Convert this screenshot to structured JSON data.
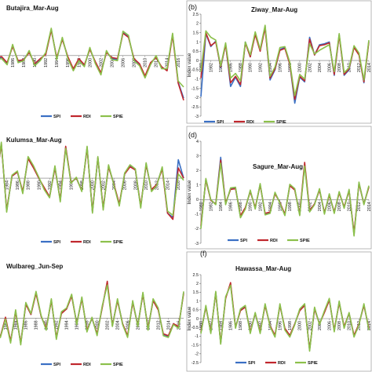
{
  "colors": {
    "SPI": "#3a6fc4",
    "RDI": "#c0272d",
    "SPIE": "#8cc04b"
  },
  "chart_data": [
    {
      "type": "line",
      "panel_label": "",
      "title": "Butajira_Mar-Aug",
      "ylabel": "",
      "yticks": [],
      "ylim": [
        -2.6,
        2.2
      ],
      "x_start": 1982,
      "x_end": 2017,
      "x_tick_labels": [
        "1982",
        "1984",
        "1986",
        "1988",
        "1990",
        "1992",
        "1994",
        "1996",
        "1998",
        "2000",
        "2002",
        "2004",
        "2006",
        "2008",
        "2010",
        "2012",
        "2014",
        "2016"
      ],
      "series": [
        {
          "name": "SPI",
          "values": [
            0.9,
            -0.15,
            -0.1,
            -0.4,
            0.5,
            -0.3,
            -0.2,
            0.2,
            -0.45,
            -0.2,
            0.1,
            1.3,
            -0.15,
            0.85,
            -0.1,
            -0.7,
            -0.2,
            -0.5,
            0.35,
            -0.35,
            -0.9,
            0.2,
            -0.15,
            -0.2,
            1.15,
            0.95,
            -0.2,
            -0.45,
            -1.05,
            -0.4,
            -0.05,
            -0.6,
            -0.7,
            1.05,
            -1.3,
            -2.1
          ]
        },
        {
          "name": "RDI",
          "values": [
            0.8,
            -0.1,
            -0.05,
            -0.35,
            0.45,
            -0.25,
            -0.2,
            0.15,
            -0.4,
            -0.15,
            0.05,
            1.25,
            -0.1,
            0.8,
            -0.05,
            -0.65,
            -0.15,
            -0.45,
            0.3,
            -0.3,
            -0.85,
            0.15,
            -0.1,
            -0.15,
            1.1,
            0.9,
            -0.15,
            -0.4,
            -1.0,
            -0.35,
            -0.1,
            -0.55,
            -0.75,
            1.0,
            -1.35,
            -2.2
          ]
        },
        {
          "name": "SPIE",
          "values": [
            0.85,
            -0.2,
            -0.15,
            -0.45,
            0.55,
            -0.35,
            -0.25,
            0.25,
            -0.5,
            -0.25,
            0.15,
            1.35,
            -0.2,
            0.9,
            -0.15,
            -0.75,
            -0.25,
            -0.55,
            0.4,
            -0.4,
            -0.95,
            0.25,
            -0.2,
            -0.25,
            1.2,
            1.0,
            -0.25,
            -0.5,
            -1.1,
            -0.45,
            0.0,
            -0.65,
            -0.65,
            1.1,
            -1.25,
            -1.55
          ]
        }
      ]
    },
    {
      "type": "line",
      "panel_label": "(b)",
      "title": "Ziway_Mar-Aug",
      "ylabel": "Index value",
      "yticks": [
        -3,
        -2.5,
        -2,
        -1.5,
        -1,
        -0.5,
        0,
        0.5,
        1,
        1.5,
        2,
        2.5
      ],
      "ylim": [
        -3,
        2.5
      ],
      "x_start": 1980,
      "x_end": 2014,
      "x_tick_labels": [
        "1980",
        "1982",
        "1984",
        "1986",
        "1988",
        "1990",
        "1992",
        "1994",
        "1996",
        "1998",
        "2000",
        "2002",
        "2004",
        "2006",
        "2008",
        "2010",
        "2012",
        "2014"
      ],
      "series": [
        {
          "name": "SPI",
          "values": [
            -1.95,
            1.45,
            0.75,
            1.05,
            -0.4,
            0.9,
            -1.4,
            -0.9,
            -1.4,
            1.0,
            0.2,
            1.45,
            0.55,
            1.85,
            -1.05,
            -0.5,
            0.6,
            0.7,
            -0.2,
            -2.3,
            -0.9,
            -1.15,
            1.25,
            0.3,
            0.85,
            0.9,
            1.0,
            -0.8,
            1.4,
            -0.8,
            -0.5,
            0.75,
            0.35,
            -1.2,
            1.05
          ]
        },
        {
          "name": "RDI",
          "values": [
            -0.95,
            1.5,
            0.8,
            1.0,
            -0.35,
            0.85,
            -1.2,
            -0.85,
            -1.3,
            0.95,
            0.2,
            1.4,
            0.5,
            1.75,
            -0.95,
            -0.45,
            0.55,
            0.65,
            -0.2,
            -2.1,
            -0.85,
            -1.1,
            1.15,
            0.3,
            0.8,
            0.85,
            0.95,
            -0.75,
            1.35,
            -0.75,
            -0.45,
            0.7,
            0.3,
            -1.15,
            1.0
          ]
        },
        {
          "name": "SPIE",
          "values": [
            -0.6,
            1.6,
            1.25,
            1.1,
            -0.3,
            0.95,
            -0.95,
            -0.7,
            -1.1,
            1.0,
            0.3,
            1.55,
            0.6,
            1.9,
            -0.85,
            -0.35,
            0.7,
            0.75,
            -0.1,
            -1.9,
            -0.75,
            -1.0,
            0.9,
            0.35,
            0.55,
            0.7,
            0.85,
            -0.6,
            1.45,
            -0.65,
            -0.4,
            0.8,
            0.4,
            -1.05,
            1.1
          ]
        }
      ]
    },
    {
      "type": "line",
      "panel_label": "",
      "title": "Kulumsa_Mar-Aug",
      "ylabel": "",
      "yticks": [],
      "ylim": [
        -2.4,
        2.1
      ],
      "x_start": 1981,
      "x_end": 2017,
      "x_tick_labels": [
        "1982",
        "1984",
        "1986",
        "1988",
        "1990",
        "1992",
        "1994",
        "1996",
        "1998",
        "2000",
        "2002",
        "2004",
        "2006",
        "2008",
        "2010",
        "2012",
        "2014",
        "2016"
      ],
      "series": [
        {
          "name": "SPI",
          "values": [
            1.05,
            -0.2,
            1.7,
            -1.6,
            0.1,
            0.3,
            -0.7,
            1.0,
            0.55,
            0.0,
            -0.5,
            -0.9,
            0.55,
            -1.1,
            1.5,
            -0.2,
            0.0,
            -0.6,
            1.5,
            -1.65,
            1.0,
            -1.5,
            0.6,
            -0.3,
            -1.3,
            0.2,
            0.6,
            0.4,
            -1.4,
            0.7,
            -0.6,
            -0.3,
            0.5,
            -1.7,
            -1.9,
            0.9,
            0.0
          ]
        },
        {
          "name": "RDI",
          "values": [
            1.0,
            -0.2,
            1.65,
            -1.55,
            0.1,
            0.3,
            -0.65,
            0.95,
            0.5,
            0.0,
            -0.45,
            -0.9,
            0.5,
            -1.05,
            1.55,
            -0.2,
            0.0,
            -0.6,
            1.45,
            -1.6,
            1.0,
            -1.45,
            0.55,
            -0.3,
            -1.25,
            0.2,
            0.55,
            0.4,
            -1.35,
            0.65,
            -0.55,
            -0.3,
            0.45,
            -1.7,
            -2.0,
            0.5,
            0.0
          ]
        },
        {
          "name": "SPIE",
          "values": [
            1.1,
            -0.25,
            1.75,
            -1.65,
            0.15,
            0.35,
            -0.75,
            1.05,
            0.6,
            0.05,
            -0.55,
            -0.95,
            0.6,
            -1.15,
            1.45,
            -0.25,
            0.05,
            -0.65,
            1.55,
            -1.7,
            1.05,
            -1.55,
            0.65,
            -0.35,
            -1.35,
            0.25,
            0.65,
            0.45,
            -1.45,
            0.75,
            -0.65,
            -0.35,
            0.55,
            -1.6,
            -1.8,
            0.2,
            -0.1
          ]
        }
      ]
    },
    {
      "type": "line",
      "panel_label": "(d)",
      "title": "Sagure_Mar-Aug",
      "ylabel": "Index value",
      "yticks": [
        -3,
        -2,
        -1,
        0,
        1,
        2,
        3,
        4
      ],
      "ylim": [
        -3,
        4
      ],
      "x_start": 1980,
      "x_end": 2014,
      "x_tick_labels": [
        "1980",
        "1982",
        "1984",
        "1986",
        "1988",
        "1990",
        "1992",
        "1994",
        "1996",
        "1998",
        "2000",
        "2002",
        "2004",
        "2006",
        "2008",
        "2010",
        "2012",
        "2014"
      ],
      "series": [
        {
          "name": "SPI",
          "values": [
            -1.9,
            1.4,
            -0.05,
            -0.3,
            2.9,
            -0.3,
            0.75,
            0.8,
            -1.2,
            -0.6,
            0.6,
            -0.6,
            1.05,
            -1.0,
            -0.9,
            0.45,
            -0.2,
            -1.05,
            1.0,
            0.7,
            -1.05,
            2.4,
            -0.8,
            -0.3,
            0.7,
            -0.95,
            0.35,
            -0.9,
            0.5,
            -0.55,
            0.65,
            -2.4,
            1.15,
            -0.3,
            0.9
          ]
        },
        {
          "name": "RDI",
          "values": [
            -1.8,
            1.35,
            -0.05,
            -0.3,
            2.7,
            -0.25,
            0.7,
            0.75,
            -1.1,
            -0.55,
            0.55,
            -0.55,
            1.0,
            -0.95,
            -0.85,
            0.4,
            -0.2,
            -1.0,
            0.95,
            0.65,
            -1.0,
            2.55,
            -0.75,
            -0.3,
            0.65,
            -0.9,
            0.3,
            -0.85,
            0.45,
            -0.5,
            0.6,
            -2.3,
            1.1,
            -0.3,
            0.85
          ]
        },
        {
          "name": "SPIE",
          "values": [
            -2.0,
            1.45,
            0.0,
            -0.35,
            2.5,
            -0.35,
            0.8,
            0.85,
            -1.25,
            -0.65,
            0.65,
            -0.65,
            1.1,
            -1.05,
            -0.95,
            0.5,
            -0.25,
            -1.1,
            1.05,
            0.75,
            -1.1,
            2.3,
            -0.85,
            -0.35,
            0.75,
            -1.0,
            0.4,
            -0.95,
            0.55,
            -0.6,
            0.7,
            -2.5,
            1.2,
            -0.35,
            0.95
          ]
        }
      ]
    },
    {
      "type": "line",
      "panel_label": "",
      "title": "Wulbareg_Jun-Sep",
      "ylabel": "",
      "yticks": [],
      "ylim": [
        -1.9,
        2.7
      ],
      "x_start": 1980,
      "x_end": 2017,
      "x_tick_labels": [
        "1982",
        "1984",
        "1986",
        "1988",
        "1990",
        "1992",
        "1994",
        "1996",
        "1998",
        "2000",
        "2002",
        "2004",
        "2006",
        "2008",
        "2010",
        "2012",
        "2014",
        "2016"
      ],
      "series": [
        {
          "name": "SPI",
          "values": [
            -0.5,
            -1.0,
            0.0,
            -1.3,
            0.4,
            -1.4,
            0.8,
            0.2,
            1.4,
            0.1,
            -0.6,
            1.0,
            -1.1,
            0.3,
            0.5,
            1.25,
            -0.3,
            1.1,
            -0.7,
            0.0,
            -0.9,
            0.6,
            1.9,
            -0.4,
            1.0,
            -0.3,
            -1.0,
            0.9,
            -0.4,
            1.35,
            -0.6,
            1.0,
            0.5,
            -0.9,
            -1.0,
            -0.3,
            -0.5,
            1.4
          ]
        },
        {
          "name": "RDI",
          "values": [
            -0.45,
            -1.0,
            0.05,
            -1.25,
            0.35,
            -1.35,
            0.75,
            0.2,
            1.35,
            0.1,
            -0.55,
            0.95,
            -1.05,
            0.25,
            0.5,
            1.2,
            -0.3,
            1.05,
            -0.65,
            0.0,
            -0.85,
            0.55,
            2.0,
            -0.4,
            0.95,
            -0.3,
            -0.95,
            0.85,
            -0.4,
            1.3,
            -0.55,
            0.95,
            0.45,
            -0.85,
            -0.95,
            -0.3,
            -0.45,
            1.35
          ]
        },
        {
          "name": "SPIE",
          "values": [
            -0.55,
            -1.05,
            -0.05,
            -1.35,
            0.45,
            -1.45,
            0.85,
            0.25,
            1.45,
            0.15,
            -0.65,
            1.05,
            -1.15,
            0.35,
            0.55,
            1.3,
            -0.35,
            1.15,
            -0.75,
            0.05,
            -0.95,
            0.65,
            1.8,
            -0.45,
            1.05,
            -0.35,
            -1.05,
            0.95,
            -0.45,
            1.4,
            -0.65,
            1.05,
            0.55,
            -0.95,
            -1.05,
            -0.35,
            -0.55,
            1.45
          ]
        }
      ]
    },
    {
      "type": "line",
      "panel_label": "(f)",
      "title": "Hawassa_Mar-Aug",
      "ylabel": "Index value",
      "yticks": [
        -2.5,
        -2,
        -1.5,
        -1,
        -0.5,
        0,
        0.5,
        1,
        1.5,
        2,
        2.5
      ],
      "ylim": [
        -2.5,
        2.5
      ],
      "x_start": 1980,
      "x_end": 2014,
      "x_tick_labels": [
        "1980",
        "1982",
        "1984",
        "1986",
        "1988",
        "1990",
        "1992",
        "1994",
        "1996",
        "1998",
        "2000",
        "2002",
        "2004",
        "2006",
        "2008",
        "2010",
        "2012",
        "2014"
      ],
      "series": [
        {
          "name": "SPI",
          "values": [
            -0.8,
            0.7,
            -0.8,
            1.5,
            -1.4,
            1.2,
            1.95,
            -0.5,
            0.5,
            0.7,
            -0.8,
            0.3,
            -0.8,
            0.8,
            -0.4,
            -1.0,
            0.8,
            -0.6,
            -1.0,
            -0.3,
            0.5,
            0.8,
            -1.8,
            0.6,
            -0.3,
            0.4,
            1.1,
            -0.7,
            0.95,
            -0.5,
            0.3,
            -1.0,
            -0.3,
            0.8,
            -0.6
          ]
        },
        {
          "name": "RDI",
          "values": [
            -0.75,
            0.65,
            -0.75,
            1.45,
            -1.35,
            1.15,
            2.05,
            -0.5,
            0.45,
            0.65,
            -0.75,
            0.3,
            -0.75,
            0.75,
            -0.4,
            -0.95,
            0.75,
            -0.55,
            -0.95,
            -0.3,
            0.45,
            0.75,
            -1.75,
            0.55,
            -0.3,
            0.35,
            1.05,
            -0.65,
            0.9,
            -0.45,
            0.3,
            -0.95,
            -0.3,
            0.75,
            -0.55
          ]
        },
        {
          "name": "SPIE",
          "values": [
            -0.85,
            0.75,
            -0.85,
            1.55,
            -1.45,
            1.25,
            1.9,
            -0.55,
            0.55,
            0.75,
            -0.85,
            0.35,
            -0.85,
            0.85,
            -0.45,
            -1.05,
            0.85,
            -0.65,
            -1.05,
            -0.35,
            0.55,
            0.85,
            -1.85,
            0.65,
            -0.35,
            0.45,
            1.15,
            -0.75,
            1.0,
            -0.55,
            0.35,
            -1.05,
            -0.35,
            0.85,
            -0.65
          ]
        }
      ]
    }
  ]
}
